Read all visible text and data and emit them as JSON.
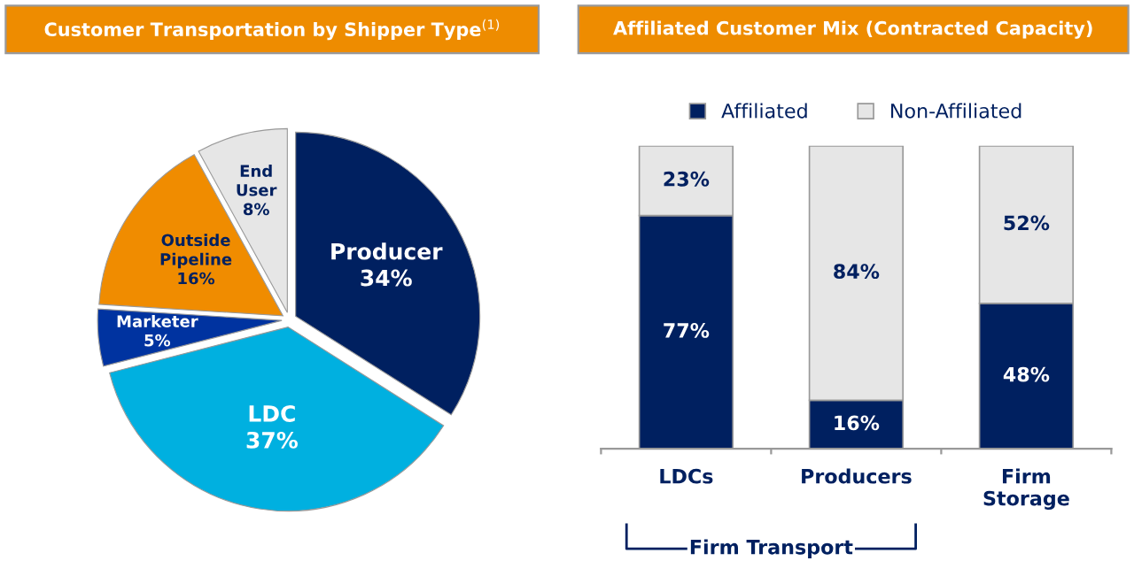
{
  "chart_data": [
    {
      "type": "pie",
      "title": "Customer Transportation by Shipper Type$^{(1)}$",
      "categories": [
        "Producer",
        "LDC",
        "Marketer",
        "Outside Pipeline",
        "End User"
      ],
      "values": [
        34,
        37,
        5,
        16,
        8
      ],
      "value_labels": [
        "34%",
        "37%",
        "5%",
        "16%",
        "8%"
      ],
      "colors": [
        "#002060",
        "#00b0e0",
        "#0033a0",
        "#f08c00",
        "#e6e6e6"
      ],
      "legend": false
    },
    {
      "type": "bar",
      "title": "Affiliated Customer Mix (Contracted Capacity)",
      "stacked": true,
      "tick_labels": "x",
      "categories": [
        "LDCs",
        "Producers",
        "Firm Storage"
      ],
      "series": [
        {
          "name": "Affiliated",
          "color": "#002060",
          "values": [
            77,
            16,
            48
          ],
          "value_labels": [
            "77%",
            "16%",
            "48%"
          ]
        },
        {
          "name": "Non-Affiliated",
          "color": "#e6e6e6",
          "values": [
            23,
            84,
            52
          ],
          "value_labels": [
            "23%",
            "84%",
            "52%"
          ]
        }
      ],
      "annotations": [
        "Firm Transport"
      ],
      "legend": "top",
      "grid": false
    }
  ]
}
